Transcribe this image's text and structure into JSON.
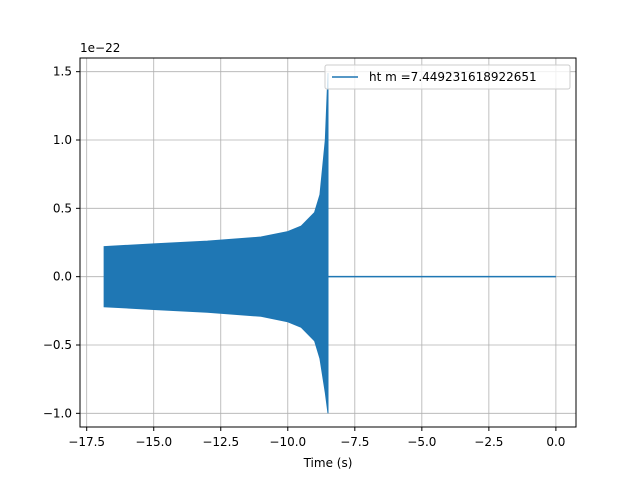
{
  "chart_data": {
    "type": "line",
    "title": "",
    "xlabel": "Time (s)",
    "ylabel": "",
    "y_offset_label": "1e−22",
    "xlim": [
      -17.75,
      0.75
    ],
    "ylim": [
      -1.1,
      1.6
    ],
    "xticks": [
      -17.5,
      -15.0,
      -12.5,
      -10.0,
      -7.5,
      -5.0,
      -2.5,
      0.0
    ],
    "xtick_labels": [
      "−17.5",
      "−15.0",
      "−12.5",
      "−10.0",
      "−7.5",
      "−5.0",
      "−2.5",
      "0.0"
    ],
    "yticks": [
      -1.0,
      -0.5,
      0.0,
      0.5,
      1.0,
      1.5
    ],
    "ytick_labels": [
      "−1.0",
      "−0.5",
      "0.0",
      "0.5",
      "1.0",
      "1.5"
    ],
    "grid": true,
    "legend_position": "top-right",
    "series": [
      {
        "name": "ht m =7.449231618922651",
        "color": "#1f77b4",
        "signal_start": -16.85,
        "merger_time": -8.5,
        "end_time": 0.0,
        "start_amplitude": 0.22,
        "peak_max": 1.49,
        "peak_min": -1.0,
        "envelope_samples": {
          "t": [
            -16.85,
            -15.0,
            -13.0,
            -11.0,
            -10.0,
            -9.5,
            -9.0,
            -8.8,
            -8.6,
            -8.5
          ],
          "upper": [
            0.22,
            0.24,
            0.26,
            0.29,
            0.33,
            0.37,
            0.47,
            0.6,
            1.0,
            1.49
          ],
          "lower": [
            -0.22,
            -0.24,
            -0.26,
            -0.29,
            -0.33,
            -0.37,
            -0.47,
            -0.6,
            -0.85,
            -1.0
          ]
        }
      }
    ]
  }
}
